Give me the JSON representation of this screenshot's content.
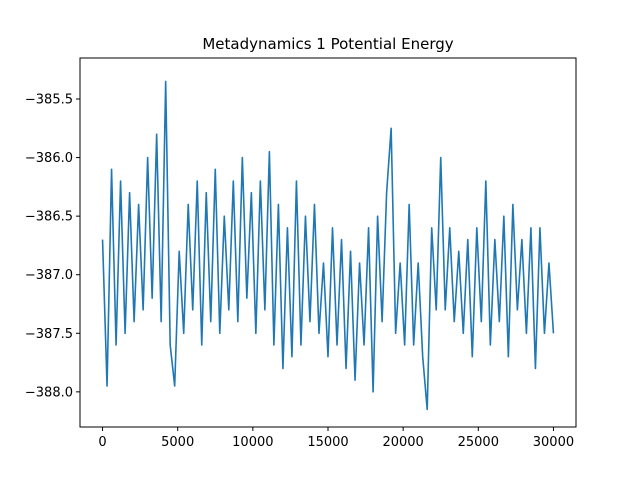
{
  "chart_data": {
    "type": "line",
    "title": "Metadynamics 1 Potential Energy",
    "xlabel": "",
    "ylabel": "",
    "xlim": [
      -1500,
      31500
    ],
    "ylim": [
      -388.3,
      -385.15
    ],
    "xticks": [
      0,
      5000,
      10000,
      15000,
      20000,
      25000,
      30000
    ],
    "xtick_labels": [
      "0",
      "5000",
      "10000",
      "15000",
      "20000",
      "25000",
      "30000"
    ],
    "yticks": [
      -388.0,
      -387.5,
      -387.0,
      -386.5,
      -386.0,
      -385.5
    ],
    "ytick_labels": [
      "−388.0",
      "−387.5",
      "−387.0",
      "−386.5",
      "−386.0",
      "−385.5"
    ],
    "grid": false,
    "line_color": "#1f77b4",
    "series": [
      {
        "x": [
          0,
          300,
          600,
          900,
          1200,
          1500,
          1800,
          2100,
          2400,
          2700,
          3000,
          3300,
          3600,
          3900,
          4200,
          4500,
          4800,
          5100,
          5400,
          5700,
          6000,
          6300,
          6600,
          6900,
          7200,
          7500,
          7800,
          8100,
          8400,
          8700,
          9000,
          9300,
          9600,
          9900,
          10200,
          10500,
          10800,
          11100,
          11400,
          11700,
          12000,
          12300,
          12600,
          12900,
          13200,
          13500,
          13800,
          14100,
          14400,
          14700,
          15000,
          15300,
          15600,
          15900,
          16200,
          16500,
          16800,
          17100,
          17400,
          17700,
          18000,
          18300,
          18600,
          18900,
          19200,
          19500,
          19800,
          20100,
          20400,
          20700,
          21000,
          21300,
          21600,
          21900,
          22200,
          22500,
          22800,
          23100,
          23400,
          23700,
          24000,
          24300,
          24600,
          24900,
          25200,
          25500,
          25800,
          26100,
          26400,
          26700,
          27000,
          27300,
          27600,
          27900,
          28200,
          28500,
          28800,
          29100,
          29400,
          29700,
          30000
        ],
        "values": [
          -386.7,
          -387.95,
          -386.1,
          -387.6,
          -386.2,
          -387.5,
          -386.3,
          -387.4,
          -386.4,
          -387.3,
          -386.0,
          -387.2,
          -385.8,
          -387.4,
          -385.35,
          -387.6,
          -387.95,
          -386.8,
          -387.5,
          -386.4,
          -387.3,
          -386.2,
          -387.6,
          -386.3,
          -387.4,
          -386.1,
          -387.5,
          -386.5,
          -387.3,
          -386.2,
          -387.4,
          -386.0,
          -387.2,
          -386.3,
          -387.5,
          -386.2,
          -387.3,
          -385.95,
          -387.6,
          -386.4,
          -387.8,
          -386.6,
          -387.7,
          -386.2,
          -387.6,
          -386.5,
          -387.4,
          -386.4,
          -387.5,
          -386.9,
          -387.7,
          -386.6,
          -387.6,
          -386.7,
          -387.8,
          -386.8,
          -387.9,
          -386.9,
          -387.6,
          -386.6,
          -388.0,
          -386.5,
          -387.4,
          -386.3,
          -385.75,
          -387.5,
          -386.9,
          -387.6,
          -386.4,
          -387.6,
          -386.9,
          -387.7,
          -388.15,
          -386.6,
          -387.3,
          -386.0,
          -387.3,
          -386.6,
          -387.4,
          -386.8,
          -387.5,
          -386.7,
          -387.7,
          -386.6,
          -387.4,
          -386.2,
          -387.6,
          -386.7,
          -387.4,
          -386.5,
          -387.7,
          -386.4,
          -387.3,
          -386.7,
          -387.5,
          -386.6,
          -387.8,
          -386.6,
          -387.5,
          -386.9,
          -387.5
        ]
      }
    ]
  }
}
